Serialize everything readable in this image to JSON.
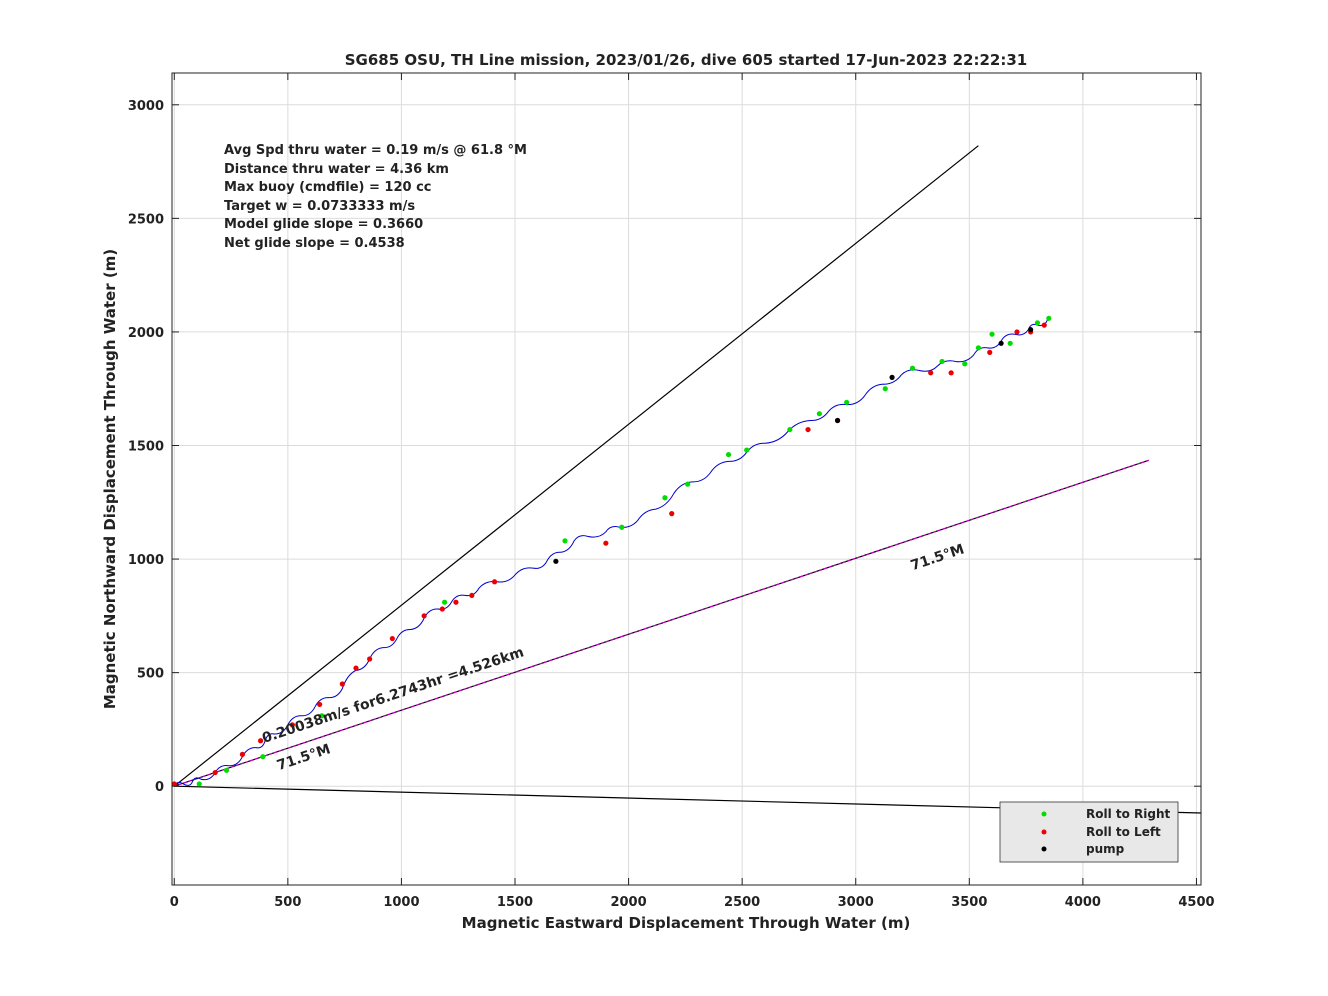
{
  "chart_data": {
    "type": "line",
    "title": "SG685 OSU, TH Line mission, 2023/01/26, dive 605 started 17-Jun-2023 22:22:31",
    "xlabel": "Magnetic Eastward Displacement Through Water (m)",
    "ylabel": "Magnetic Northward Displacement Through Water (m)",
    "xlim": [
      -10,
      4520
    ],
    "ylim": [
      -435,
      3140
    ],
    "xticks": [
      0,
      500,
      1000,
      1500,
      2000,
      2500,
      3000,
      3500,
      4000,
      4500
    ],
    "yticks": [
      0,
      500,
      1000,
      1500,
      2000,
      2500,
      3000
    ],
    "grid": true,
    "info_lines": [
      "Avg Spd thru water  =  0.19 m/s @  61.8  °M",
      "Distance thru water =  4.36 km",
      "Max buoy (cmdfile)  = 120 cc",
      "Target w                    = 0.0733333 m/s",
      "Model glide slope    = 0.3660",
      "Net glide slope         = 0.4538"
    ],
    "reference_lines": [
      {
        "x": [
          0,
          3540
        ],
        "y": [
          0,
          2820
        ],
        "color": "#000000"
      },
      {
        "x": [
          0,
          4290
        ],
        "y": [
          0,
          1435
        ],
        "color": "#000000"
      },
      {
        "x": [
          0,
          4290
        ],
        "y": [
          0,
          1435
        ],
        "color": "#cc00cc"
      },
      {
        "x": [
          0,
          4520
        ],
        "y": [
          0,
          -118
        ],
        "color": "#000000"
      }
    ],
    "annotations": [
      {
        "text": "0.20038m/s for6.2743hr =4.526km",
        "x": 395,
        "y": 190,
        "angle": -18.5
      },
      {
        "text": "71.5°M",
        "x": 460,
        "y": 70,
        "angle": -18.5
      },
      {
        "text": "71.5°M",
        "x": 3250,
        "y": 950,
        "angle": -18.5
      }
    ],
    "track": {
      "name": "track",
      "color": "#0000cc",
      "x": [
        0,
        40,
        80,
        120,
        180,
        240,
        300,
        360,
        400,
        440,
        500,
        560,
        620,
        680,
        740,
        800,
        860,
        920,
        980,
        1040,
        1100,
        1160,
        1220,
        1280,
        1340,
        1420,
        1500,
        1580,
        1640,
        1700,
        1760,
        1820,
        1900,
        1960,
        2040,
        2120,
        2200,
        2280,
        2360,
        2440,
        2520,
        2600,
        2700,
        2800,
        2880,
        2960,
        3040,
        3120,
        3200,
        3280,
        3360,
        3440,
        3520,
        3580,
        3640,
        3700,
        3760,
        3800,
        3845
      ],
      "y": [
        0,
        10,
        20,
        30,
        60,
        90,
        130,
        170,
        200,
        230,
        270,
        310,
        350,
        390,
        430,
        510,
        560,
        610,
        650,
        690,
        740,
        780,
        810,
        840,
        870,
        900,
        930,
        960,
        990,
        1030,
        1080,
        1100,
        1120,
        1140,
        1170,
        1220,
        1290,
        1340,
        1380,
        1430,
        1470,
        1510,
        1560,
        1610,
        1650,
        1680,
        1720,
        1770,
        1810,
        1830,
        1850,
        1870,
        1900,
        1930,
        1960,
        1990,
        2010,
        2030,
        2055
      ]
    },
    "legend": {
      "location": "bottom-right",
      "entries": [
        {
          "label": "Roll to Right",
          "color": "#00dd00"
        },
        {
          "label": "Roll to Left",
          "color": "#ee0000"
        },
        {
          "label": "pump",
          "color": "#000000"
        }
      ]
    },
    "markers": {
      "roll_right": {
        "color": "#00dd00",
        "x": [
          110,
          230,
          390,
          650,
          1190,
          1720,
          1970,
          2160,
          2260,
          2440,
          2520,
          2710,
          2840,
          2960,
          3130,
          3250,
          3380,
          3480,
          3540,
          3600,
          3680,
          3800,
          3850
        ],
        "y": [
          10,
          70,
          130,
          310,
          810,
          1080,
          1140,
          1270,
          1330,
          1460,
          1480,
          1570,
          1640,
          1690,
          1750,
          1840,
          1870,
          1860,
          1930,
          1990,
          1950,
          2040,
          2060
        ]
      },
      "roll_left": {
        "color": "#ee0000",
        "x": [
          0,
          180,
          300,
          380,
          520,
          640,
          740,
          800,
          860,
          960,
          1100,
          1180,
          1240,
          1310,
          1410,
          1900,
          2190,
          2790,
          2920,
          3330,
          3420,
          3590,
          3710,
          3770,
          3830
        ],
        "y": [
          10,
          60,
          140,
          200,
          270,
          360,
          450,
          520,
          560,
          650,
          750,
          780,
          810,
          840,
          900,
          1070,
          1200,
          1570,
          1610,
          1820,
          1820,
          1910,
          2000,
          2000,
          2030
        ]
      },
      "pump": {
        "color": "#000000",
        "x": [
          1680,
          2920,
          3160,
          3640,
          3770
        ],
        "y": [
          990,
          1610,
          1800,
          1950,
          2010
        ]
      }
    }
  }
}
